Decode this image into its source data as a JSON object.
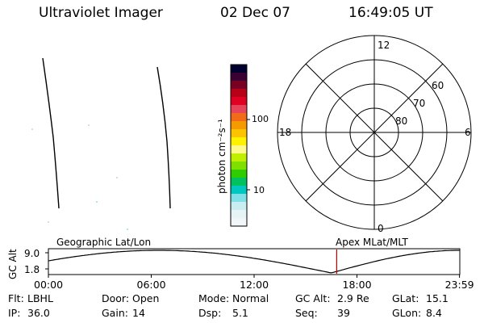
{
  "header": {
    "instrument": "Ultraviolet Imager",
    "date": "02 Dec 07",
    "time": "16:49:05 UT"
  },
  "colorbar": {
    "unit_label": "photon cm⁻²s⁻¹",
    "tick_labels": [
      "100",
      "10"
    ],
    "colors": [
      "#000030",
      "#3a0033",
      "#7a0022",
      "#b80018",
      "#e00022",
      "#e7445b",
      "#f26b1a",
      "#f59a00",
      "#fbc300",
      "#fff200",
      "#fff88a",
      "#c0f000",
      "#7fe000",
      "#2ecc00",
      "#00c060",
      "#00c8c0",
      "#7fe0e8",
      "#c8eef2",
      "#e6f4f6",
      "#f1f7f8"
    ]
  },
  "polar_plot": {
    "clock_labels": {
      "top": "12",
      "left": "18",
      "right": "6",
      "bottom": "0"
    },
    "lat_labels": [
      "60",
      "70",
      "80"
    ]
  },
  "timeline": {
    "y_axis_label": "GC Alt",
    "y_ticks": [
      "9.0",
      "1.8"
    ],
    "left_caption": "Geographic Lat/Lon",
    "right_caption": "Apex  MLat/MLT",
    "x_ticks": [
      "00:00",
      "06:00",
      "12:00",
      "18:00",
      "23:59"
    ],
    "current_time_hours": 16.82,
    "marker_color": "#c00000"
  },
  "footer": {
    "row1": [
      {
        "label": "Flt:",
        "value": "LBHL"
      },
      {
        "label": "Door:",
        "value": "Open"
      },
      {
        "label": "Mode:",
        "value": "Normal"
      },
      {
        "label": "GC Alt:",
        "value": "2.9 Re"
      },
      {
        "label": "GLat:",
        "value": "15.1"
      }
    ],
    "row2": [
      {
        "label": "IP:",
        "value": "36.0"
      },
      {
        "label": "Gain:",
        "value": "14"
      },
      {
        "label": "Dsp:",
        "value": "5.1"
      },
      {
        "label": "Seq:",
        "value": "39"
      },
      {
        "label": "GLon:",
        "value": "8.4"
      }
    ]
  }
}
